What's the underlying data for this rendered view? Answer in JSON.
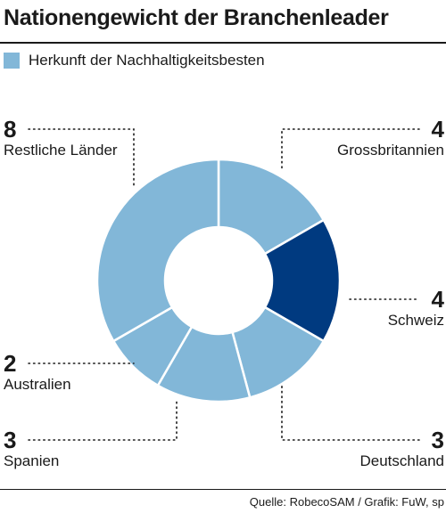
{
  "title": "Nationengewicht der Branchenleader",
  "legend": {
    "label": "Herkunft der Nachhaltigkeitsbesten",
    "color": "#82b7d8"
  },
  "source": "Quelle: RobecoSAM / Grafik: FuW, sp",
  "colors": {
    "default": "#82b7d8",
    "highlight": "#003a80",
    "separator": "#ffffff"
  },
  "chart_data": {
    "type": "pie",
    "subtype": "donut",
    "title": "Nationengewicht der Branchenleader",
    "subtitle": "Herkunft der Nachhaltigkeitsbesten",
    "categories": [
      "Grossbritannien",
      "Schweiz",
      "Deutschland",
      "Spanien",
      "Australien",
      "Restliche Länder"
    ],
    "values": [
      4,
      4,
      3,
      3,
      2,
      8
    ],
    "highlighted": [
      "Schweiz"
    ],
    "labels": [
      {
        "name": "Grossbritannien",
        "value": "4"
      },
      {
        "name": "Schweiz",
        "value": "4"
      },
      {
        "name": "Deutschland",
        "value": "3"
      },
      {
        "name": "Spanien",
        "value": "3"
      },
      {
        "name": "Australien",
        "value": "2"
      },
      {
        "name": "Restliche Länder",
        "value": "8"
      }
    ]
  }
}
